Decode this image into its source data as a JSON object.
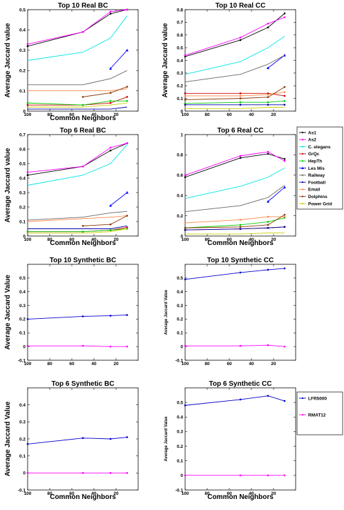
{
  "chart_data": [
    {
      "type": "line",
      "title": "Top 10 Real BC",
      "xlabel": "Common Neighbors",
      "ylabel": "Average Jaccard value",
      "xlim": [
        100,
        0
      ],
      "ylim": [
        0,
        0.5
      ],
      "xticks": [
        100,
        80,
        60,
        40,
        20
      ],
      "yticks": [
        0,
        0.1,
        0.2,
        0.3,
        0.4,
        0.5
      ],
      "series": [
        {
          "name": "As1",
          "color": "#000000",
          "marker": "square",
          "x": [
            100,
            50,
            25,
            10
          ],
          "y": [
            0.32,
            0.39,
            0.48,
            0.5
          ]
        },
        {
          "name": "As2",
          "color": "#ff00ff",
          "marker": "square",
          "x": [
            100,
            50,
            25,
            10
          ],
          "y": [
            0.33,
            0.39,
            0.49,
            0.5
          ]
        },
        {
          "name": "C. elegans",
          "color": "#00e5e5",
          "marker": "none",
          "x": [
            100,
            50,
            25,
            10
          ],
          "y": [
            0.25,
            0.29,
            0.36,
            0.47
          ]
        },
        {
          "name": "GrQc",
          "color": "#cc0000",
          "marker": "square",
          "x": [
            100,
            50,
            25,
            10
          ],
          "y": [
            0.03,
            0.03,
            0.04,
            0.07
          ]
        },
        {
          "name": "HepTh",
          "color": "#00cc00",
          "marker": "square",
          "x": [
            100,
            50,
            25,
            10
          ],
          "y": [
            0.04,
            0.03,
            0.05,
            0.05
          ]
        },
        {
          "name": "Les Mis",
          "color": "#0000ff",
          "marker": "triangle",
          "x": [
            25,
            10
          ],
          "y": [
            0.21,
            0.3
          ]
        },
        {
          "name": "Railway",
          "color": "#666666",
          "marker": "none",
          "x": [
            100,
            50,
            25,
            10
          ],
          "y": [
            0.13,
            0.13,
            0.16,
            0.2
          ]
        },
        {
          "name": "Football",
          "color": "#0000aa",
          "marker": "none",
          "x": [
            100,
            50,
            25,
            10
          ],
          "y": [
            0.01,
            0.01,
            0.01,
            0.02
          ]
        },
        {
          "name": "Email",
          "color": "#ff8844",
          "marker": "none",
          "x": [
            100,
            50,
            25,
            10
          ],
          "y": [
            0.1,
            0.1,
            0.1,
            0.11
          ]
        },
        {
          "name": "Dolphins",
          "color": "#883300",
          "marker": "square",
          "x": [
            50,
            25,
            10
          ],
          "y": [
            0.07,
            0.09,
            0.12
          ]
        },
        {
          "name": "Power Grid",
          "color": "#cccc00",
          "marker": "none",
          "x": [
            100,
            50,
            25,
            10
          ],
          "y": [
            0.02,
            0.02,
            0.03,
            0.04
          ]
        }
      ]
    },
    {
      "type": "line",
      "title": "Top 10 Real CC",
      "xlabel": "",
      "ylabel": "Average Jaccard value",
      "xlim": [
        100,
        0
      ],
      "ylim": [
        0,
        0.8
      ],
      "xticks": [
        100,
        80,
        60,
        40,
        20
      ],
      "yticks": [
        0,
        0.1,
        0.2,
        0.3,
        0.4,
        0.5,
        0.6,
        0.7,
        0.8
      ],
      "series": [
        {
          "name": "As1",
          "color": "#000000",
          "marker": "square",
          "x": [
            100,
            50,
            25,
            10
          ],
          "y": [
            0.43,
            0.56,
            0.66,
            0.77
          ]
        },
        {
          "name": "As2",
          "color": "#ff00ff",
          "marker": "square",
          "x": [
            100,
            50,
            25,
            10
          ],
          "y": [
            0.44,
            0.58,
            0.69,
            0.74
          ]
        },
        {
          "name": "C. elegans",
          "color": "#00e5e5",
          "marker": "none",
          "x": [
            100,
            50,
            25,
            10
          ],
          "y": [
            0.29,
            0.39,
            0.5,
            0.59
          ]
        },
        {
          "name": "GrQc",
          "color": "#cc0000",
          "marker": "square",
          "x": [
            100,
            50,
            25,
            10
          ],
          "y": [
            0.14,
            0.14,
            0.14,
            0.12
          ]
        },
        {
          "name": "HepTh",
          "color": "#00cc00",
          "marker": "square",
          "x": [
            100,
            50,
            25,
            10
          ],
          "y": [
            0.06,
            0.07,
            0.07,
            0.08
          ]
        },
        {
          "name": "Les Mis",
          "color": "#0000ff",
          "marker": "triangle",
          "x": [
            25,
            10
          ],
          "y": [
            0.34,
            0.44
          ]
        },
        {
          "name": "Railway",
          "color": "#666666",
          "marker": "none",
          "x": [
            100,
            50,
            25,
            10
          ],
          "y": [
            0.23,
            0.29,
            0.37,
            0.44
          ]
        },
        {
          "name": "Football",
          "color": "#0000aa",
          "marker": "square",
          "x": [
            100,
            50,
            25,
            10
          ],
          "y": [
            0.05,
            0.05,
            0.05,
            0.05
          ]
        },
        {
          "name": "Email",
          "color": "#ff8844",
          "marker": "square",
          "x": [
            100,
            50,
            25,
            10
          ],
          "y": [
            0.12,
            0.12,
            0.13,
            0.15
          ]
        },
        {
          "name": "Dolphins",
          "color": "#883300",
          "marker": "square",
          "x": [
            100,
            50,
            25,
            10
          ],
          "y": [
            0.09,
            0.1,
            0.11,
            0.19
          ]
        },
        {
          "name": "Power Grid",
          "color": "#cccc00",
          "marker": "none",
          "x": [
            100,
            50,
            25,
            10
          ],
          "y": [
            0.02,
            0.02,
            0.03,
            0.03
          ]
        }
      ]
    },
    {
      "type": "line",
      "title": "Top 6 Real BC",
      "xlabel": "Common Neighbors",
      "ylabel": "Average Jaccard value",
      "xlim": [
        100,
        0
      ],
      "ylim": [
        0,
        0.7
      ],
      "xticks": [
        100,
        80,
        60,
        40,
        20
      ],
      "yticks": [
        0,
        0.1,
        0.2,
        0.3,
        0.4,
        0.5,
        0.6,
        0.7
      ],
      "series": [
        {
          "name": "As1",
          "color": "#000000",
          "marker": "square",
          "x": [
            100,
            50,
            25,
            10
          ],
          "y": [
            0.42,
            0.48,
            0.59,
            0.64
          ]
        },
        {
          "name": "As2",
          "color": "#ff00ff",
          "marker": "square",
          "x": [
            100,
            50,
            25,
            10
          ],
          "y": [
            0.44,
            0.48,
            0.61,
            0.64
          ]
        },
        {
          "name": "C. elegans",
          "color": "#00e5e5",
          "marker": "none",
          "x": [
            100,
            50,
            25,
            10
          ],
          "y": [
            0.35,
            0.42,
            0.5,
            0.63
          ]
        },
        {
          "name": "GrQc",
          "color": "#cc0000",
          "marker": "square",
          "x": [
            100,
            50,
            25,
            10
          ],
          "y": [
            0.03,
            0.03,
            0.04,
            0.06
          ]
        },
        {
          "name": "HepTh",
          "color": "#00cc00",
          "marker": "square",
          "x": [
            100,
            50,
            25,
            10
          ],
          "y": [
            0.03,
            0.03,
            0.04,
            0.05
          ]
        },
        {
          "name": "Les Mis",
          "color": "#0000ff",
          "marker": "triangle",
          "x": [
            25,
            10
          ],
          "y": [
            0.21,
            0.3
          ]
        },
        {
          "name": "Railway",
          "color": "#666666",
          "marker": "none",
          "x": [
            100,
            50,
            25,
            10
          ],
          "y": [
            0.11,
            0.13,
            0.16,
            0.17
          ]
        },
        {
          "name": "Football",
          "color": "#0000aa",
          "marker": "none",
          "x": [
            100,
            50,
            25,
            10
          ],
          "y": [
            0.05,
            0.05,
            0.05,
            0.07
          ]
        },
        {
          "name": "Email",
          "color": "#ff8844",
          "marker": "none",
          "x": [
            100,
            50,
            25,
            10
          ],
          "y": [
            0.1,
            0.12,
            0.13,
            0.14
          ]
        },
        {
          "name": "Dolphins",
          "color": "#883300",
          "marker": "square",
          "x": [
            50,
            25,
            10
          ],
          "y": [
            0.07,
            0.08,
            0.14
          ]
        },
        {
          "name": "Power Grid",
          "color": "#cccc00",
          "marker": "none",
          "x": [
            100,
            50,
            25,
            10
          ],
          "y": [
            0.02,
            0.02,
            0.03,
            0.05
          ]
        }
      ]
    },
    {
      "type": "line",
      "title": "Top 6 Real CC",
      "xlabel": "Common Neighbors",
      "ylabel": "",
      "xlim": [
        100,
        0
      ],
      "ylim": [
        0,
        1
      ],
      "xticks": [
        100,
        80,
        60,
        40,
        20
      ],
      "yticks": [
        0,
        0.2,
        0.4,
        0.6,
        0.8,
        1
      ],
      "series": [
        {
          "name": "As1",
          "color": "#000000",
          "marker": "square",
          "x": [
            100,
            50,
            25,
            10
          ],
          "y": [
            0.58,
            0.77,
            0.81,
            0.76
          ]
        },
        {
          "name": "As2",
          "color": "#ff00ff",
          "marker": "square",
          "x": [
            100,
            50,
            25,
            10
          ],
          "y": [
            0.6,
            0.79,
            0.83,
            0.74
          ]
        },
        {
          "name": "C. elegans",
          "color": "#00e5e5",
          "marker": "none",
          "x": [
            100,
            50,
            25,
            10
          ],
          "y": [
            0.37,
            0.49,
            0.58,
            0.67
          ]
        },
        {
          "name": "GrQc",
          "color": "#cc0000",
          "marker": "square",
          "x": [
            100,
            50,
            25,
            10
          ],
          "y": [
            0.06,
            0.07,
            0.08,
            0.09
          ]
        },
        {
          "name": "HepTh",
          "color": "#00cc00",
          "marker": "square",
          "x": [
            100,
            50,
            25,
            10
          ],
          "y": [
            0.08,
            0.11,
            0.14,
            0.18
          ]
        },
        {
          "name": "Les Mis",
          "color": "#0000ff",
          "marker": "triangle",
          "x": [
            25,
            10
          ],
          "y": [
            0.34,
            0.48
          ]
        },
        {
          "name": "Railway",
          "color": "#666666",
          "marker": "none",
          "x": [
            100,
            50,
            25,
            10
          ],
          "y": [
            0.24,
            0.3,
            0.38,
            0.5
          ]
        },
        {
          "name": "Football",
          "color": "#0000aa",
          "marker": "square",
          "x": [
            100,
            50,
            25,
            10
          ],
          "y": [
            0.06,
            0.07,
            0.08,
            0.09
          ]
        },
        {
          "name": "Email",
          "color": "#ff8844",
          "marker": "square",
          "x": [
            100,
            50,
            25,
            10
          ],
          "y": [
            0.13,
            0.16,
            0.19,
            0.19
          ]
        },
        {
          "name": "Dolphins",
          "color": "#883300",
          "marker": "square",
          "x": [
            100,
            50,
            25,
            10
          ],
          "y": [
            0.08,
            0.09,
            0.11,
            0.21
          ]
        },
        {
          "name": "Power Grid",
          "color": "#cccc00",
          "marker": "none",
          "x": [
            100,
            50,
            25,
            10
          ],
          "y": [
            0.02,
            0.02,
            0.03,
            0.03
          ]
        }
      ]
    },
    {
      "type": "line",
      "title": "Top 10 Synthetic BC",
      "xlabel": "",
      "ylabel": "Average Jaccard Value",
      "xlim": [
        100,
        0
      ],
      "ylim": [
        -0.1,
        0.6
      ],
      "xticks": [
        100,
        80,
        60,
        40,
        20
      ],
      "yticks": [
        -0.1,
        0,
        0.1,
        0.2,
        0.3,
        0.4,
        0.5
      ],
      "series": [
        {
          "name": "LFR5000",
          "color": "#0000cc",
          "marker": "square",
          "x": [
            100,
            50,
            25,
            10
          ],
          "y": [
            0.2,
            0.22,
            0.225,
            0.23
          ]
        },
        {
          "name": "RMAT12",
          "color": "#ff00ff",
          "marker": "square",
          "x": [
            100,
            50,
            25,
            10
          ],
          "y": [
            0.005,
            0.005,
            0.0,
            0.0
          ]
        }
      ]
    },
    {
      "type": "line",
      "title": "Top 10 Synthetic CC",
      "xlabel": "",
      "ylabel": "Average Jaccard Value",
      "xlim": [
        100,
        0
      ],
      "ylim": [
        -0.1,
        0.6
      ],
      "xticks": [
        100,
        80,
        60,
        40,
        20
      ],
      "yticks": [
        -0.1,
        0,
        0.1,
        0.2,
        0.3,
        0.4,
        0.5
      ],
      "series": [
        {
          "name": "LFR5000",
          "color": "#0000cc",
          "marker": "square",
          "x": [
            100,
            50,
            25,
            10
          ],
          "y": [
            0.49,
            0.54,
            0.56,
            0.57
          ]
        },
        {
          "name": "RMAT12",
          "color": "#ff00ff",
          "marker": "square",
          "x": [
            100,
            50,
            25,
            10
          ],
          "y": [
            0.005,
            0.005,
            0.01,
            0.0
          ]
        }
      ]
    },
    {
      "type": "line",
      "title": "Top 6 Synthetic BC",
      "xlabel": "Common Neighbors",
      "ylabel": "Average Jaccard Value",
      "xlim": [
        100,
        0
      ],
      "ylim": [
        -0.1,
        0.5
      ],
      "xticks": [
        100,
        80,
        60,
        40,
        20
      ],
      "yticks": [
        -0.1,
        0,
        0.1,
        0.2,
        0.3,
        0.4
      ],
      "series": [
        {
          "name": "LFR5000",
          "color": "#0000cc",
          "marker": "square",
          "x": [
            100,
            50,
            25,
            10
          ],
          "y": [
            0.17,
            0.205,
            0.2,
            0.21
          ]
        },
        {
          "name": "RMAT12",
          "color": "#ff00ff",
          "marker": "square",
          "x": [
            100,
            50,
            25,
            10
          ],
          "y": [
            0.0,
            0.0,
            0.0,
            0.0
          ]
        }
      ]
    },
    {
      "type": "line",
      "title": "Top 6 Synthetic CC",
      "xlabel": "Common Neighbors",
      "ylabel": "Average Jaccard Value",
      "xlim": [
        100,
        0
      ],
      "ylim": [
        -0.1,
        0.6
      ],
      "xticks": [
        100,
        80,
        60,
        40,
        20
      ],
      "yticks": [
        -0.1,
        0,
        0.1,
        0.2,
        0.3,
        0.4,
        0.5
      ],
      "series": [
        {
          "name": "LFR5000",
          "color": "#0000cc",
          "marker": "square",
          "x": [
            100,
            50,
            25,
            10
          ],
          "y": [
            0.48,
            0.52,
            0.545,
            0.51
          ]
        },
        {
          "name": "RMAT12",
          "color": "#ff00ff",
          "marker": "square",
          "x": [
            100,
            50,
            25,
            10
          ],
          "y": [
            0.0,
            0.0,
            0.0,
            0.0
          ]
        }
      ]
    }
  ],
  "legends": {
    "real": [
      "As1",
      "As2",
      "C. elegans",
      "GrQc",
      "HepTh",
      "Les Mis",
      "Railway",
      "Football",
      "Email",
      "Dolphins",
      "Power Grid"
    ],
    "synthetic": [
      "LFR5000",
      "RMAT12"
    ]
  }
}
